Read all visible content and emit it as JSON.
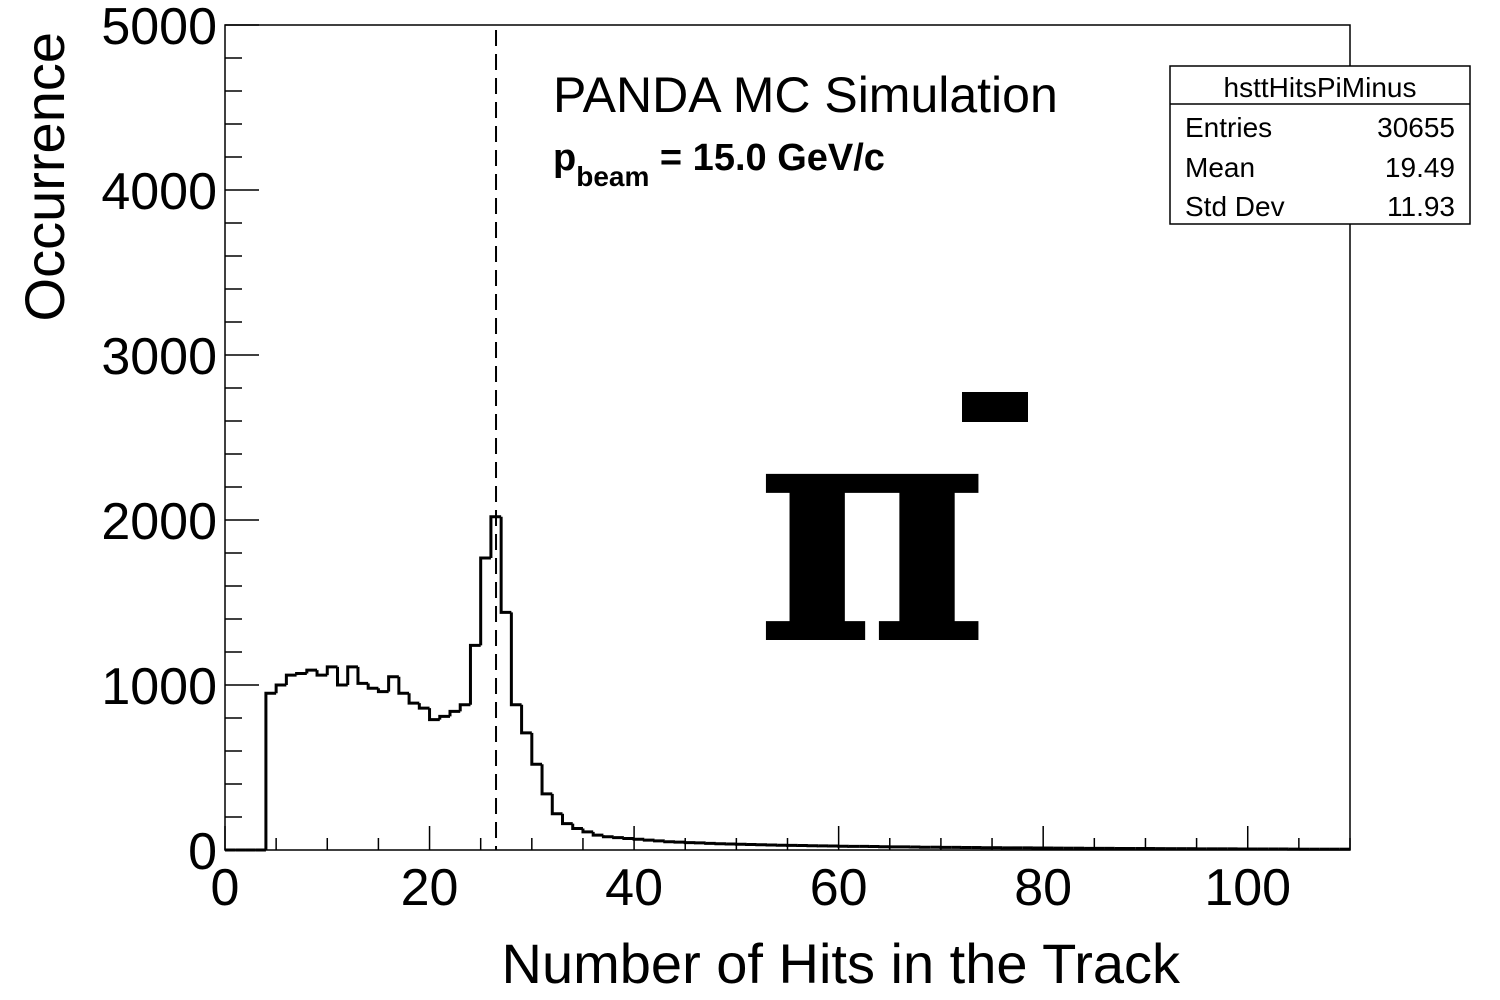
{
  "chart_data": {
    "type": "histogram",
    "title": "PANDA MC Simulation",
    "subtitle": {
      "p": "p",
      "sub": "beam",
      "rest": " = 15.0 GeV/c"
    },
    "particle": {
      "symbol": "π",
      "charge": "-"
    },
    "xlabel": "Number of Hits in the Track",
    "ylabel": "Occurrence",
    "xlim": [
      0,
      110
    ],
    "ylim": [
      0,
      5000
    ],
    "xticks": [
      0,
      20,
      40,
      60,
      80,
      100
    ],
    "xtick_labels": [
      "0",
      "20",
      "40",
      "60",
      "80",
      "100"
    ],
    "yticks": [
      0,
      1000,
      2000,
      3000,
      4000,
      5000
    ],
    "ytick_labels": [
      "0",
      "1000",
      "2000",
      "3000",
      "4000",
      "5000"
    ],
    "bin_width": 1,
    "bin_start": 0,
    "values": [
      0,
      0,
      0,
      0,
      950,
      1000,
      1060,
      1070,
      1090,
      1060,
      1110,
      1000,
      1110,
      1010,
      980,
      960,
      1050,
      950,
      890,
      860,
      790,
      810,
      840,
      880,
      1240,
      1770,
      2020,
      1440,
      880,
      710,
      520,
      340,
      220,
      160,
      130,
      110,
      90,
      80,
      75,
      70,
      65,
      60,
      55,
      50,
      48,
      45,
      43,
      40,
      38,
      36,
      35,
      33,
      32,
      30,
      29,
      28,
      27,
      26,
      25,
      24,
      23,
      22,
      22,
      21,
      20,
      19,
      19,
      18,
      17,
      17,
      16,
      16,
      15,
      15,
      14,
      14,
      13,
      13,
      13,
      12,
      12,
      11,
      11,
      11,
      10,
      10,
      10,
      9,
      9,
      9,
      9,
      8,
      8,
      8,
      8,
      7,
      7,
      7,
      7,
      6,
      6,
      6,
      6,
      6,
      5,
      5,
      5,
      5,
      5,
      5
    ],
    "cut_line_x": 26.5,
    "stats": {
      "name": "hsttHitsPiMinus",
      "rows": [
        {
          "label": "Entries",
          "value": "30655"
        },
        {
          "label": "Mean",
          "value": "19.49"
        },
        {
          "label": "Std Dev",
          "value": "11.93"
        }
      ]
    }
  }
}
